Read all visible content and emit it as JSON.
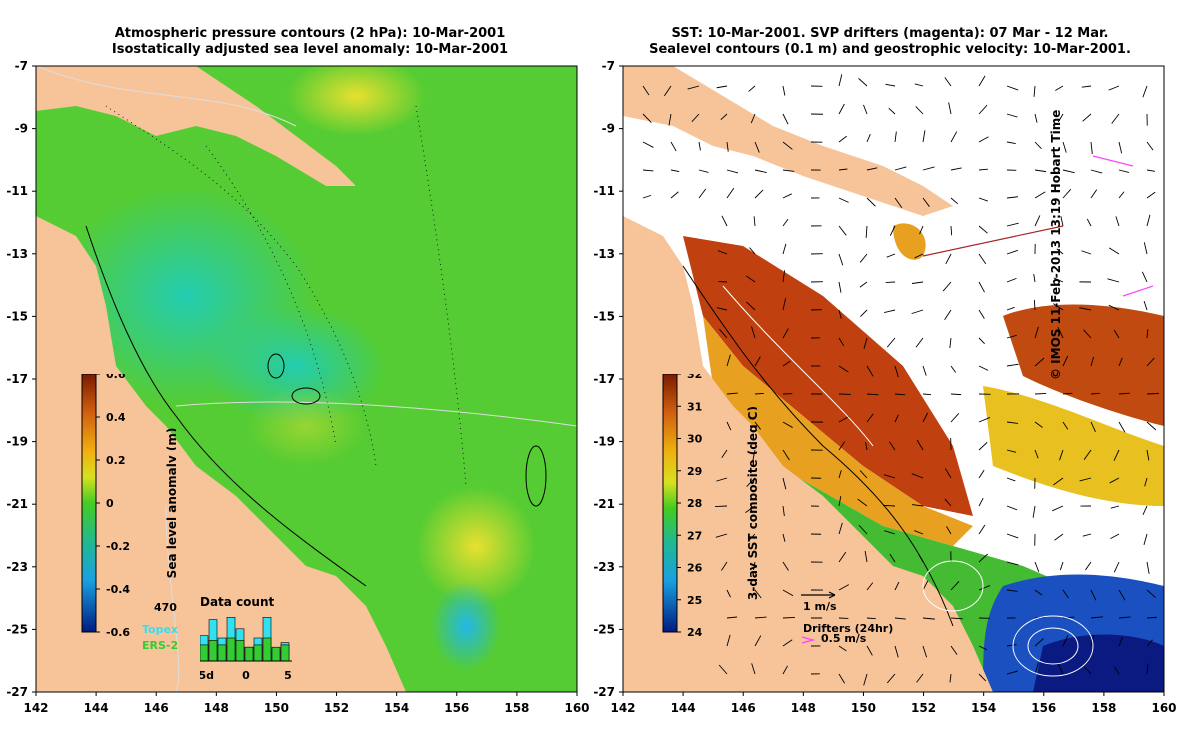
{
  "left_panel": {
    "title_line1": "Atmospheric pressure contours (2 hPa): 10-Mar-2001",
    "title_line2": "Isostatically adjusted sea level anomaly: 10-Mar-2001",
    "colorbar": {
      "label": "Sea level anomaly (m)",
      "ticks": [
        "0.6",
        "0.4",
        "0.2",
        "0",
        "-0.2",
        "-0.4",
        "-0.6"
      ],
      "range": [
        -0.6,
        0.6
      ]
    },
    "data_count": {
      "title": "Data count",
      "max_label": "470",
      "series": [
        {
          "name": "Topex",
          "color": "#33e0f0"
        },
        {
          "name": "ERS-2",
          "color": "#33cc33"
        }
      ],
      "x_ticks": [
        "-5d",
        "0",
        "5"
      ],
      "topex": [
        0.55,
        0.9,
        0.5,
        0.95,
        0.7,
        0.3,
        0.5,
        0.95,
        0.25,
        0.4
      ],
      "ers2": [
        0.35,
        0.45,
        0.35,
        0.5,
        0.45,
        0.3,
        0.35,
        0.5,
        0.3,
        0.35
      ]
    }
  },
  "right_panel": {
    "title_line1": "SST: 10-Mar-2001. SVP drifters (magenta): 07 Mar - 12 Mar.",
    "title_line2": "Sealevel contours (0.1 m) and geostrophic velocity: 10-Mar-2001.",
    "colorbar": {
      "label": "3-day SST composite (deg C)",
      "ticks": [
        "32",
        "31",
        "30",
        "29",
        "28",
        "27",
        "26",
        "25",
        "24"
      ],
      "range": [
        24,
        32.5
      ]
    },
    "velocity_key": "1 m/s",
    "drifter_key_title": "Drifters (24hr)",
    "drifter_key_speed": "0.5 m/s"
  },
  "axes": {
    "x_ticks": [
      "142",
      "144",
      "146",
      "148",
      "150",
      "152",
      "154",
      "156",
      "158",
      "160"
    ],
    "y_ticks": [
      "-7",
      "-9",
      "-11",
      "-13",
      "-15",
      "-17",
      "-19",
      "-21",
      "-23",
      "-25",
      "-27"
    ],
    "lon_range": [
      142,
      160
    ],
    "lat_range": [
      -27,
      -7
    ]
  },
  "credit": "© IMOS 11-Feb-2013 13:19 Hobart Time",
  "colors": {
    "land": "#f7c49a",
    "sea_mid": "#55cc33",
    "drifter": "#ff44ff"
  }
}
